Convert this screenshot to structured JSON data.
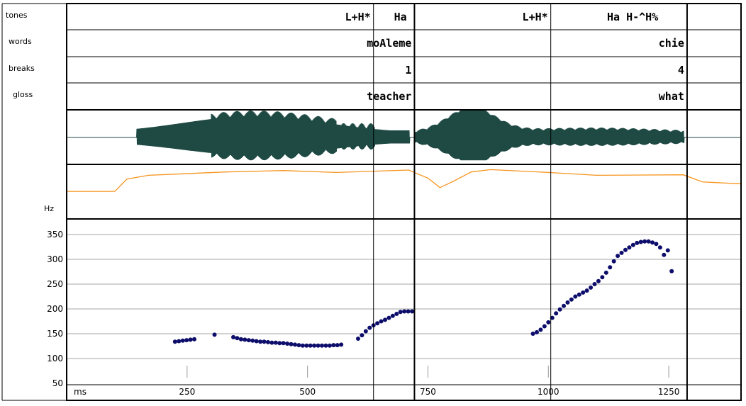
{
  "tiers": {
    "labels": [
      "tones",
      "words",
      "breaks",
      "gloss"
    ],
    "tones": [
      {
        "t": 637,
        "text": "L+H*"
      },
      {
        "t": 712,
        "text": "Ha"
      },
      {
        "t": 1005,
        "text": "L+H*"
      },
      {
        "t": 1234,
        "text": "Ha H-^H%"
      }
    ],
    "words": [
      {
        "t": 722,
        "text": "moAleme"
      },
      {
        "t": 1288,
        "text": "chie"
      }
    ],
    "breaks": [
      {
        "t": 722,
        "text": "1"
      },
      {
        "t": 1288,
        "text": "4"
      }
    ],
    "gloss": [
      {
        "t": 722,
        "text": "teacher"
      },
      {
        "t": 1288,
        "text": "what"
      }
    ]
  },
  "colors": {
    "waveform": "#1f4a44",
    "pitch_track": "#f7941d",
    "points": "#0d0d6b",
    "grid": "#a6a6a6"
  },
  "chart_data": {
    "type": "scatter",
    "x_unit_label": "ms",
    "y_unit_label": "Hz",
    "xlim": [
      0,
      1400
    ],
    "ylim": [
      50,
      360
    ],
    "xticks": [
      250,
      500,
      750,
      1000,
      1250
    ],
    "yticks": [
      50,
      100,
      150,
      200,
      250,
      300,
      350
    ],
    "boundaries_ms": [
      637,
      722,
      1005,
      1288
    ],
    "grid": true,
    "f0_points": [
      {
        "x": 225,
        "y": 134
      },
      {
        "x": 233,
        "y": 135
      },
      {
        "x": 241,
        "y": 136
      },
      {
        "x": 249,
        "y": 137
      },
      {
        "x": 257,
        "y": 138
      },
      {
        "x": 265,
        "y": 139
      },
      {
        "x": 307,
        "y": 148
      },
      {
        "x": 346,
        "y": 143
      },
      {
        "x": 354,
        "y": 141
      },
      {
        "x": 362,
        "y": 139
      },
      {
        "x": 370,
        "y": 138
      },
      {
        "x": 378,
        "y": 137
      },
      {
        "x": 386,
        "y": 136
      },
      {
        "x": 394,
        "y": 135
      },
      {
        "x": 402,
        "y": 134
      },
      {
        "x": 410,
        "y": 134
      },
      {
        "x": 418,
        "y": 133
      },
      {
        "x": 426,
        "y": 132
      },
      {
        "x": 434,
        "y": 132
      },
      {
        "x": 442,
        "y": 131
      },
      {
        "x": 450,
        "y": 131
      },
      {
        "x": 458,
        "y": 130
      },
      {
        "x": 466,
        "y": 129
      },
      {
        "x": 474,
        "y": 128
      },
      {
        "x": 482,
        "y": 127
      },
      {
        "x": 490,
        "y": 126
      },
      {
        "x": 498,
        "y": 126
      },
      {
        "x": 506,
        "y": 126
      },
      {
        "x": 514,
        "y": 126
      },
      {
        "x": 522,
        "y": 126
      },
      {
        "x": 530,
        "y": 126
      },
      {
        "x": 538,
        "y": 126
      },
      {
        "x": 546,
        "y": 126
      },
      {
        "x": 554,
        "y": 127
      },
      {
        "x": 562,
        "y": 127
      },
      {
        "x": 570,
        "y": 128
      },
      {
        "x": 605,
        "y": 140
      },
      {
        "x": 613,
        "y": 147
      },
      {
        "x": 621,
        "y": 155
      },
      {
        "x": 629,
        "y": 162
      },
      {
        "x": 637,
        "y": 167
      },
      {
        "x": 645,
        "y": 171
      },
      {
        "x": 653,
        "y": 175
      },
      {
        "x": 661,
        "y": 178
      },
      {
        "x": 669,
        "y": 182
      },
      {
        "x": 677,
        "y": 186
      },
      {
        "x": 685,
        "y": 190
      },
      {
        "x": 693,
        "y": 194
      },
      {
        "x": 701,
        "y": 195
      },
      {
        "x": 709,
        "y": 195
      },
      {
        "x": 717,
        "y": 195
      },
      {
        "x": 968,
        "y": 150
      },
      {
        "x": 976,
        "y": 153
      },
      {
        "x": 984,
        "y": 158
      },
      {
        "x": 992,
        "y": 165
      },
      {
        "x": 1000,
        "y": 173
      },
      {
        "x": 1008,
        "y": 182
      },
      {
        "x": 1016,
        "y": 191
      },
      {
        "x": 1024,
        "y": 199
      },
      {
        "x": 1032,
        "y": 206
      },
      {
        "x": 1040,
        "y": 213
      },
      {
        "x": 1048,
        "y": 219
      },
      {
        "x": 1056,
        "y": 225
      },
      {
        "x": 1064,
        "y": 229
      },
      {
        "x": 1072,
        "y": 233
      },
      {
        "x": 1080,
        "y": 237
      },
      {
        "x": 1088,
        "y": 243
      },
      {
        "x": 1096,
        "y": 250
      },
      {
        "x": 1104,
        "y": 256
      },
      {
        "x": 1112,
        "y": 264
      },
      {
        "x": 1120,
        "y": 273
      },
      {
        "x": 1128,
        "y": 284
      },
      {
        "x": 1136,
        "y": 296
      },
      {
        "x": 1144,
        "y": 307
      },
      {
        "x": 1152,
        "y": 313
      },
      {
        "x": 1160,
        "y": 319
      },
      {
        "x": 1168,
        "y": 324
      },
      {
        "x": 1176,
        "y": 329
      },
      {
        "x": 1184,
        "y": 333
      },
      {
        "x": 1192,
        "y": 335
      },
      {
        "x": 1200,
        "y": 336
      },
      {
        "x": 1208,
        "y": 336
      },
      {
        "x": 1216,
        "y": 334
      },
      {
        "x": 1224,
        "y": 331
      },
      {
        "x": 1232,
        "y": 324
      },
      {
        "x": 1240,
        "y": 309
      },
      {
        "x": 1248,
        "y": 318
      },
      {
        "x": 1256,
        "y": 276
      }
    ],
    "pitch_track": [
      [
        0,
        52
      ],
      [
        100,
        52
      ],
      [
        125,
        78
      ],
      [
        170,
        86
      ],
      [
        330,
        93
      ],
      [
        450,
        96
      ],
      [
        560,
        92
      ],
      [
        710,
        97
      ],
      [
        750,
        80
      ],
      [
        775,
        60
      ],
      [
        800,
        72
      ],
      [
        840,
        93
      ],
      [
        880,
        98
      ],
      [
        1000,
        92
      ],
      [
        1100,
        86
      ],
      [
        1280,
        87
      ],
      [
        1320,
        72
      ],
      [
        1400,
        68
      ]
    ]
  }
}
